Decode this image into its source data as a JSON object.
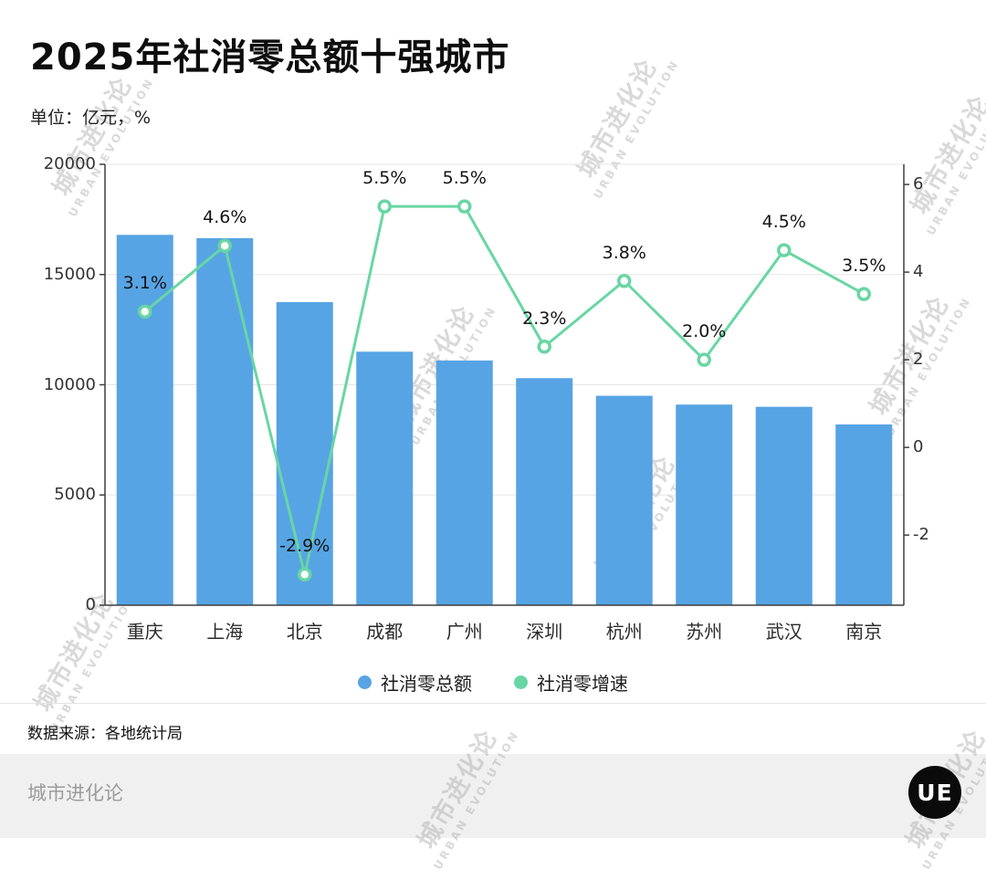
{
  "page": {
    "title": "2025年社消零总额十强城市",
    "unit_label": "单位：亿元，%",
    "source_label": "数据来源：各地统计局",
    "footer_brand": "城市进化论",
    "logo_text": "UE",
    "watermark_cn": "城市进化论",
    "watermark_en": "URBAN EVOLUTION"
  },
  "colors": {
    "bar": "#57a4e4",
    "line": "#68d6a4",
    "axis": "#3f3f3f",
    "grid": "#e5e5e5",
    "marker_fill": "#ffffff",
    "footer_bg": "#f0f0f0"
  },
  "chart_data": {
    "type": "bar",
    "subtype": "bar+line dual axis",
    "title": "2025年社消零总额十强城市",
    "unit": "亿元，%",
    "categories": [
      "重庆",
      "上海",
      "北京",
      "成都",
      "广州",
      "深圳",
      "杭州",
      "苏州",
      "武汉",
      "南京"
    ],
    "series": [
      {
        "name": "社消零总额",
        "type": "bar",
        "axis": "left",
        "values": [
          16800,
          16650,
          13750,
          11500,
          11100,
          10300,
          9500,
          9100,
          9000,
          8200
        ]
      },
      {
        "name": "社消零增速",
        "type": "line",
        "axis": "right",
        "values": [
          3.1,
          4.6,
          -2.9,
          5.5,
          5.5,
          2.3,
          3.8,
          2.0,
          4.5,
          3.5
        ],
        "labels": [
          "3.1%",
          "4.6%",
          "-2.9%",
          "5.5%",
          "5.5%",
          "2.3%",
          "3.8%",
          "2.0%",
          "4.5%",
          "3.5%"
        ]
      }
    ],
    "left_axis": {
      "min": 0,
      "max": 20000,
      "ticks": [
        20000,
        15000,
        10000,
        5000,
        0
      ]
    },
    "right_axis": {
      "min": -3.6,
      "max": 6.46,
      "ticks": [
        6,
        4,
        2,
        0,
        -2
      ]
    },
    "grid": "horizontal",
    "legend_position": "bottom",
    "legend": [
      {
        "label": "社消零总额",
        "color": "#57a4e4"
      },
      {
        "label": "社消零增速",
        "color": "#68d6a4"
      }
    ]
  }
}
